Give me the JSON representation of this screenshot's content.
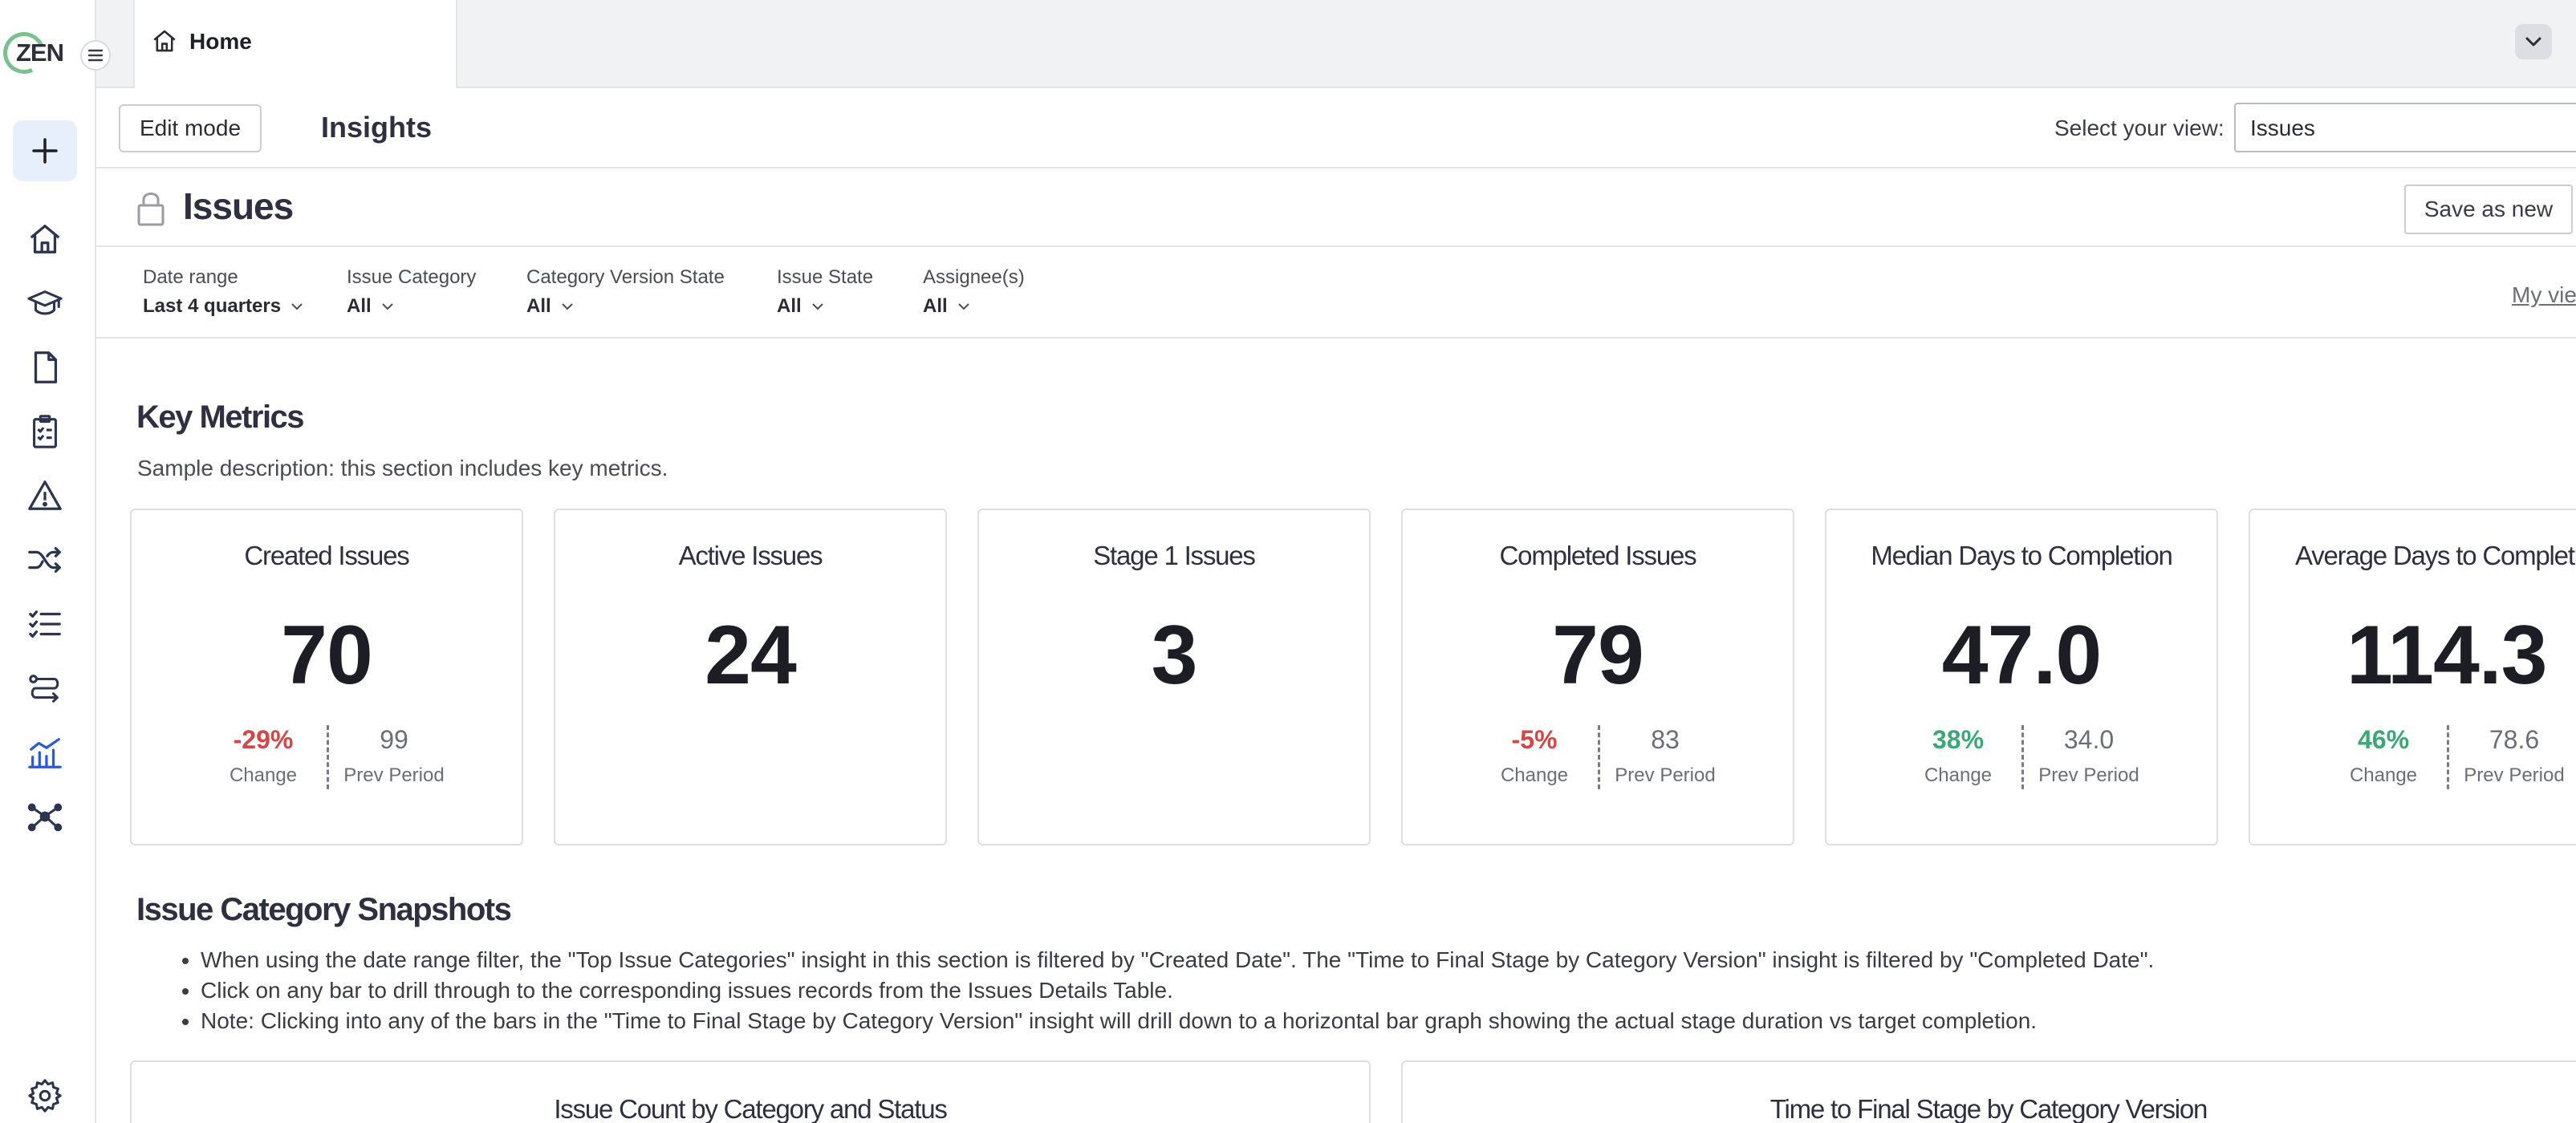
{
  "app": {
    "logo_text": "ZEN"
  },
  "tabs": [
    {
      "label": "Home"
    }
  ],
  "header": {
    "edit_button": "Edit mode",
    "title": "Insights",
    "view_label": "Select your view:",
    "view_value": "Issues"
  },
  "dashboard": {
    "title": "Issues",
    "save_button": "Save as new",
    "my_views_link": "My vie"
  },
  "filters": [
    {
      "label": "Date range",
      "value": "Last 4 quarters"
    },
    {
      "label": "Issue Category",
      "value": "All"
    },
    {
      "label": "Category Version State",
      "value": "All"
    },
    {
      "label": "Issue State",
      "value": "All"
    },
    {
      "label": "Assignee(s)",
      "value": "All"
    }
  ],
  "key_metrics": {
    "title": "Key Metrics",
    "description": "Sample description: this section includes key metrics.",
    "change_caption": "Change",
    "prev_caption": "Prev Period",
    "cards": [
      {
        "title": "Created Issues",
        "value": "70",
        "change": "-29%",
        "prev": "99"
      },
      {
        "title": "Active Issues",
        "value": "24"
      },
      {
        "title": "Stage 1 Issues",
        "value": "3"
      },
      {
        "title": "Completed Issues",
        "value": "79",
        "change": "-5%",
        "prev": "83"
      },
      {
        "title": "Median Days to Completion",
        "value": "47.0",
        "change": "38%",
        "prev": "34.0"
      },
      {
        "title": "Average Days to Completio",
        "value": "114.3",
        "change": "46%",
        "prev": "78.6"
      }
    ]
  },
  "snapshots": {
    "title": "Issue Category Snapshots",
    "bullets": [
      "When using the date range filter, the \"Top Issue Categories\" insight in this section is filtered by \"Created Date\". The \"Time to Final Stage by Category Version\" insight is filtered by \"Completed Date\".",
      "Click on any bar to drill through to the corresponding issues records from the Issues Details Table.",
      "Note: Clicking into any of the bars in the \"Time to Final Stage by Category Version\" insight will drill down to a horizontal bar graph showing the actual stage duration vs target completion."
    ],
    "charts": [
      {
        "title": "Issue Count by Category and Status"
      },
      {
        "title": "Time to Final Stage by Category Version"
      }
    ]
  },
  "colors": {
    "negative": "#d64545",
    "positive": "#3aa874",
    "accent": "#2a5bd7"
  },
  "rail_icons": [
    "home-icon",
    "graduation-cap-icon",
    "document-icon",
    "clipboard-checklist-icon",
    "warning-icon",
    "shuffle-icon",
    "task-list-icon",
    "workflow-icon",
    "chart-icon",
    "network-icon",
    "settings-icon"
  ]
}
